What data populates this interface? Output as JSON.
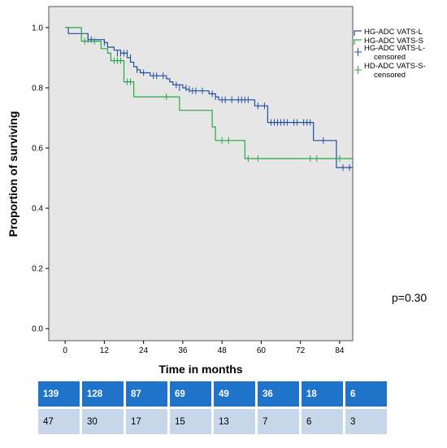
{
  "chart_data": {
    "type": "line",
    "subtype": "kaplan-meier",
    "xlabel": "Time in months",
    "ylabel": "Proportion of surviving",
    "xlim": [
      -5,
      88
    ],
    "ylim": [
      -0.04,
      1.07
    ],
    "xticks": [
      0,
      12,
      24,
      36,
      48,
      60,
      72,
      84
    ],
    "yticks": [
      0.0,
      0.2,
      0.4,
      0.6,
      0.8,
      1.0
    ],
    "grid": false,
    "background": "#e6e6e6",
    "legend_position": "top-right outside",
    "legend": [
      {
        "label": "HG-ADC VATS-L",
        "kind": "line",
        "color": "#1f4fa3"
      },
      {
        "label": "HG-ADC VATS-S",
        "kind": "line",
        "color": "#27a844"
      },
      {
        "label": "HG-ADC VATS-L-censored",
        "kind": "censor",
        "color": "#1f4fa3"
      },
      {
        "label": "HD-ADC VATS-S-censored",
        "kind": "censor",
        "color": "#27a844"
      }
    ],
    "series": [
      {
        "name": "HG-ADC VATS-L",
        "color": "#1f4fa3",
        "steps": [
          [
            0,
            1.0
          ],
          [
            1,
            0.98
          ],
          [
            7,
            0.96
          ],
          [
            12,
            0.95
          ],
          [
            13,
            0.935
          ],
          [
            15,
            0.925
          ],
          [
            17,
            0.915
          ],
          [
            19,
            0.9
          ],
          [
            20,
            0.885
          ],
          [
            21,
            0.87
          ],
          [
            22,
            0.86
          ],
          [
            23,
            0.85
          ],
          [
            26,
            0.84
          ],
          [
            31,
            0.83
          ],
          [
            32,
            0.82
          ],
          [
            33,
            0.81
          ],
          [
            36,
            0.8
          ],
          [
            37,
            0.795
          ],
          [
            38,
            0.79
          ],
          [
            44,
            0.78
          ],
          [
            46,
            0.77
          ],
          [
            47,
            0.76
          ],
          [
            58,
            0.74
          ],
          [
            62,
            0.685
          ],
          [
            76,
            0.625
          ],
          [
            83,
            0.535
          ],
          [
            88,
            0.535
          ]
        ],
        "censored": [
          [
            7,
            0.96
          ],
          [
            8,
            0.96
          ],
          [
            12,
            0.95
          ],
          [
            16,
            0.915
          ],
          [
            17,
            0.915
          ],
          [
            18,
            0.915
          ],
          [
            19,
            0.915
          ],
          [
            20,
            0.9
          ],
          [
            22,
            0.86
          ],
          [
            24,
            0.85
          ],
          [
            27,
            0.84
          ],
          [
            28,
            0.84
          ],
          [
            30,
            0.84
          ],
          [
            34,
            0.81
          ],
          [
            35,
            0.8
          ],
          [
            37,
            0.8
          ],
          [
            38,
            0.795
          ],
          [
            39,
            0.79
          ],
          [
            40,
            0.79
          ],
          [
            42,
            0.79
          ],
          [
            45,
            0.78
          ],
          [
            46,
            0.77
          ],
          [
            48,
            0.76
          ],
          [
            49,
            0.76
          ],
          [
            51,
            0.76
          ],
          [
            53,
            0.76
          ],
          [
            54,
            0.76
          ],
          [
            55,
            0.76
          ],
          [
            56,
            0.76
          ],
          [
            59,
            0.74
          ],
          [
            61,
            0.74
          ],
          [
            63,
            0.685
          ],
          [
            64,
            0.685
          ],
          [
            65,
            0.685
          ],
          [
            66,
            0.685
          ],
          [
            67,
            0.685
          ],
          [
            68,
            0.685
          ],
          [
            70,
            0.685
          ],
          [
            71,
            0.685
          ],
          [
            73,
            0.685
          ],
          [
            74,
            0.685
          ],
          [
            75,
            0.685
          ],
          [
            79,
            0.625
          ],
          [
            85,
            0.535
          ],
          [
            87,
            0.535
          ]
        ]
      },
      {
        "name": "HG-ADC VATS-S",
        "color": "#27a844",
        "steps": [
          [
            0,
            1.0
          ],
          [
            5,
            0.955
          ],
          [
            11,
            0.93
          ],
          [
            13,
            0.915
          ],
          [
            14,
            0.89
          ],
          [
            18,
            0.82
          ],
          [
            21,
            0.77
          ],
          [
            35,
            0.725
          ],
          [
            45,
            0.67
          ],
          [
            46,
            0.625
          ],
          [
            55,
            0.565
          ],
          [
            88,
            0.565
          ]
        ],
        "censored": [
          [
            6,
            0.955
          ],
          [
            9,
            0.955
          ],
          [
            15,
            0.89
          ],
          [
            16,
            0.89
          ],
          [
            17,
            0.89
          ],
          [
            19,
            0.82
          ],
          [
            20,
            0.82
          ],
          [
            31,
            0.77
          ],
          [
            48,
            0.625
          ],
          [
            50,
            0.625
          ],
          [
            56,
            0.565
          ],
          [
            59,
            0.565
          ],
          [
            75,
            0.565
          ],
          [
            77,
            0.565
          ],
          [
            84,
            0.565
          ]
        ]
      }
    ],
    "annotation": "p=0.30",
    "risk_table": [
      {
        "name": "HG-ADC VATS-L",
        "values": [
          "139",
          "128",
          "87",
          "69",
          "49",
          "36",
          "18",
          "6"
        ]
      },
      {
        "name": "HG-ADC VATS-S",
        "values": [
          "47",
          "30",
          "17",
          "15",
          "13",
          "7",
          "6",
          "3"
        ]
      }
    ]
  }
}
